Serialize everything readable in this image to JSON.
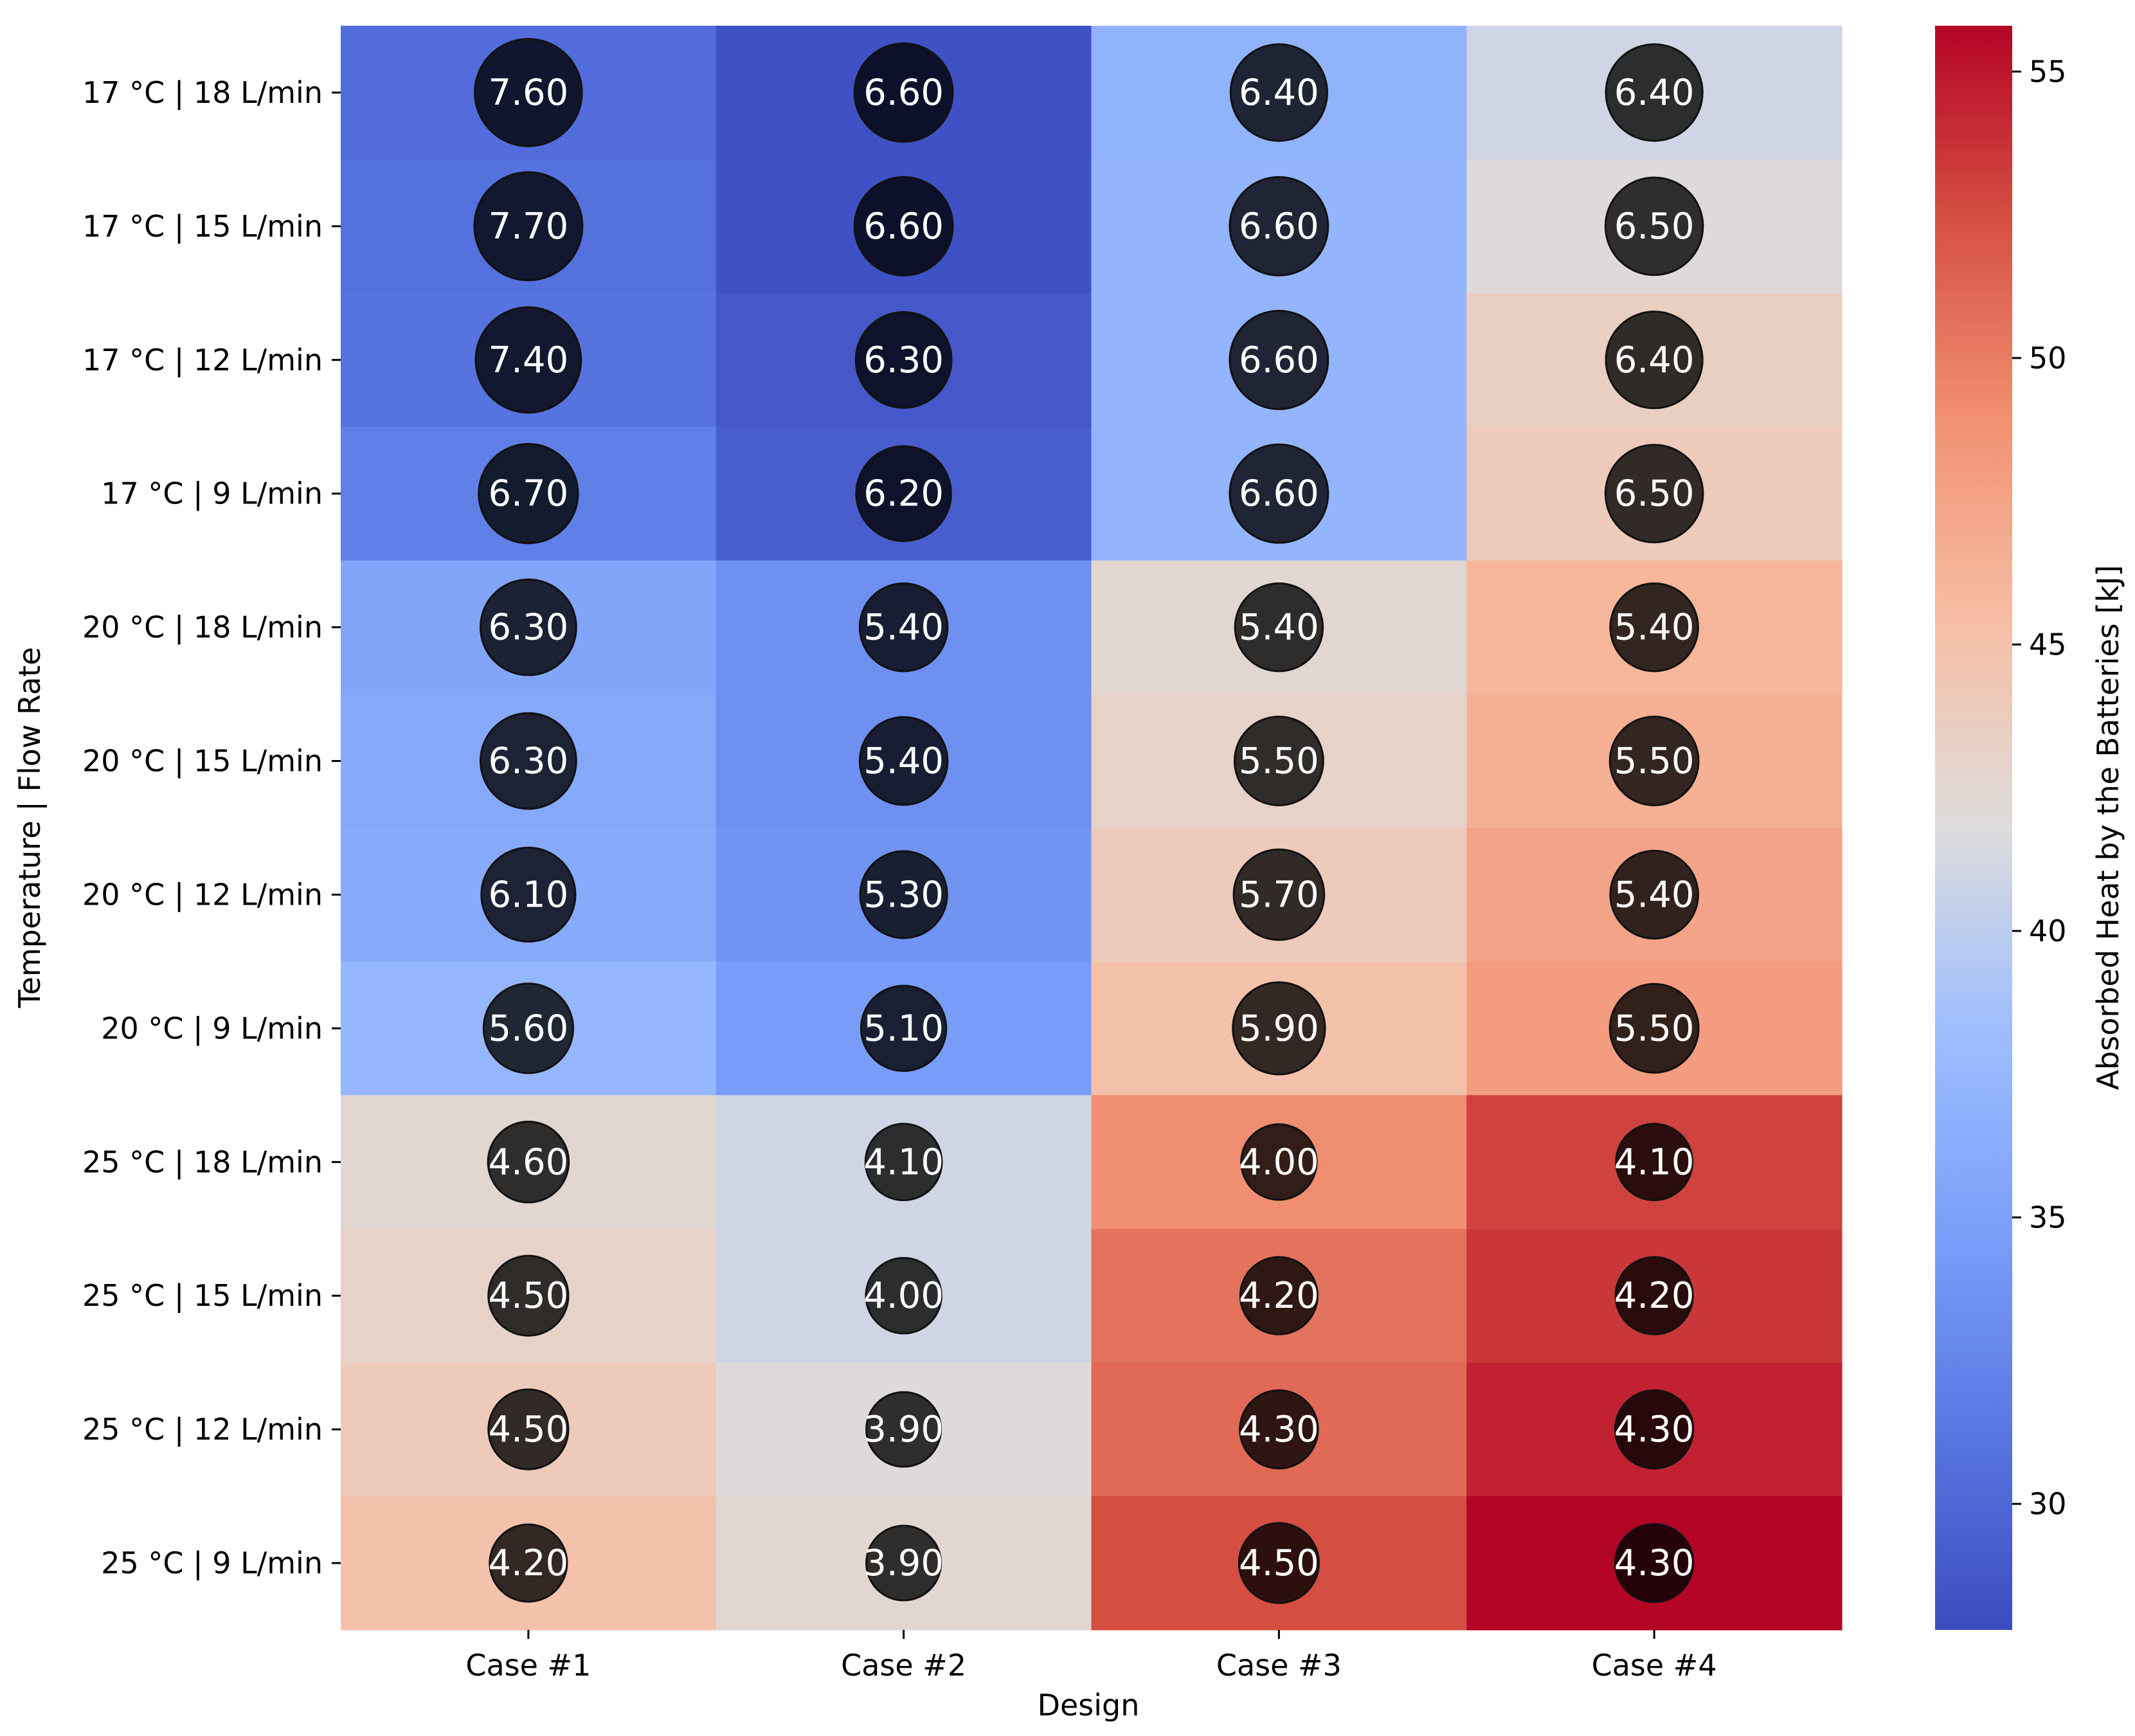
{
  "chart_data": {
    "type": "heatmap",
    "xlabel": "Design",
    "ylabel": "Temperature | Flow Rate",
    "x_categories": [
      "Case #1",
      "Case #2",
      "Case #3",
      "Case #4"
    ],
    "y_categories": [
      "17 °C | 18 L/min",
      "17 °C | 15 L/min",
      "17 °C | 12 L/min",
      "17 °C | 9 L/min",
      "20 °C | 18 L/min",
      "20 °C | 15 L/min",
      "20 °C | 12 L/min",
      "20 °C | 9 L/min",
      "25 °C | 18 L/min",
      "25 °C | 15 L/min",
      "25 °C | 12 L/min",
      "25 °C | 9 L/min"
    ],
    "heat_values": [
      [
        30.5,
        28.3,
        37.0,
        41.0
      ],
      [
        30.8,
        28.3,
        37.3,
        42.0
      ],
      [
        31.0,
        28.8,
        37.3,
        43.5
      ],
      [
        32.0,
        29.3,
        37.3,
        44.0
      ],
      [
        35.5,
        33.5,
        42.5,
        46.0
      ],
      [
        35.8,
        33.5,
        43.0,
        46.5
      ],
      [
        36.0,
        33.8,
        44.0,
        47.5
      ],
      [
        37.5,
        34.5,
        45.0,
        48.0
      ],
      [
        42.5,
        41.0,
        49.0,
        53.0
      ],
      [
        43.0,
        41.0,
        50.5,
        53.5
      ],
      [
        44.0,
        42.0,
        51.0,
        54.5
      ],
      [
        45.0,
        42.5,
        52.5,
        56.0
      ]
    ],
    "annotations": [
      [
        "7.60",
        "6.60",
        "6.40",
        "6.40"
      ],
      [
        "7.70",
        "6.60",
        "6.60",
        "6.50"
      ],
      [
        "7.40",
        "6.30",
        "6.60",
        "6.40"
      ],
      [
        "6.70",
        "6.20",
        "6.60",
        "6.50"
      ],
      [
        "6.30",
        "5.40",
        "5.40",
        "5.40"
      ],
      [
        "6.30",
        "5.40",
        "5.50",
        "5.50"
      ],
      [
        "6.10",
        "5.30",
        "5.70",
        "5.40"
      ],
      [
        "5.60",
        "5.10",
        "5.90",
        "5.50"
      ],
      [
        "4.60",
        "4.10",
        "4.00",
        "4.10"
      ],
      [
        "4.50",
        "4.00",
        "4.20",
        "4.20"
      ],
      [
        "4.50",
        "3.90",
        "4.30",
        "4.30"
      ],
      [
        "4.20",
        "3.90",
        "4.50",
        "4.30"
      ]
    ],
    "colorbar": {
      "label": "Absorbed Heat by the Batteries [kJ]",
      "range": [
        27.8,
        55.8
      ],
      "ticks": [
        30,
        35,
        40,
        45,
        50,
        55
      ],
      "colormap": "coolwarm"
    }
  }
}
